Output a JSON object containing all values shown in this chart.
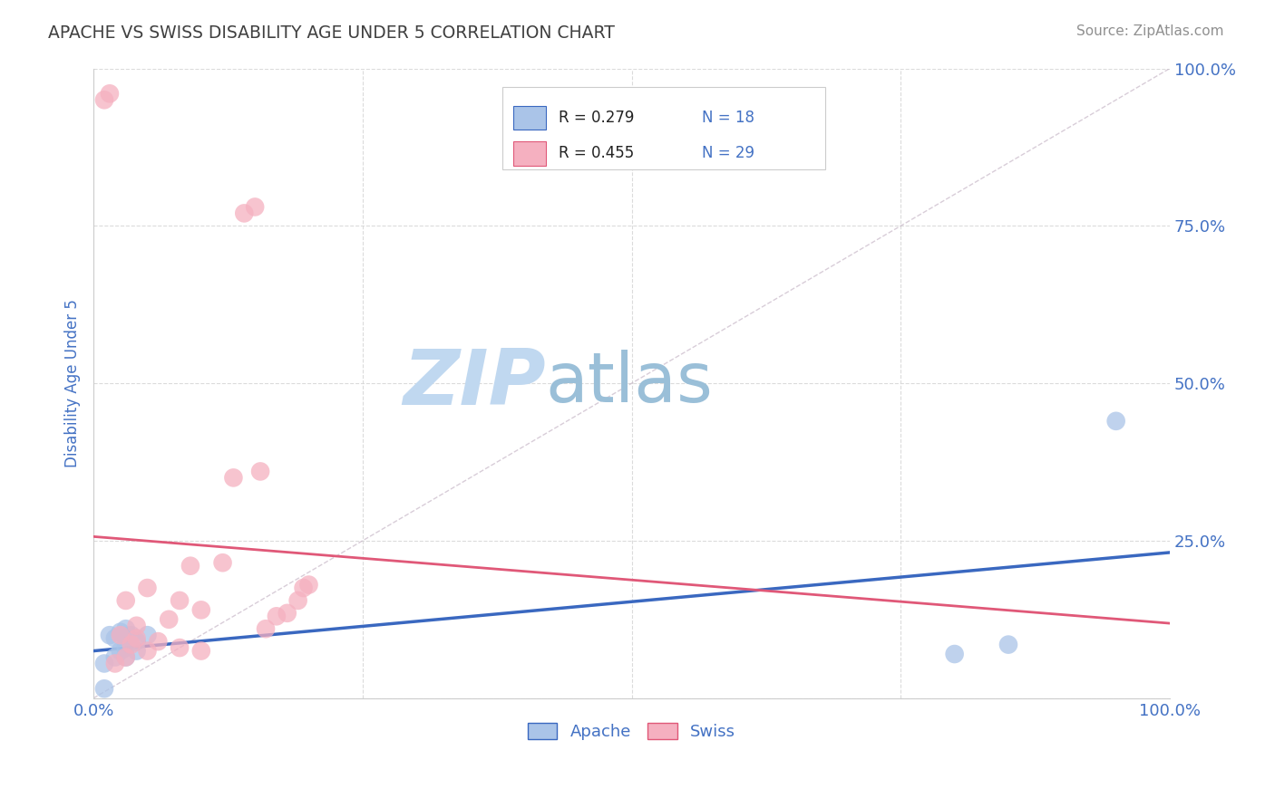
{
  "title": "APACHE VS SWISS DISABILITY AGE UNDER 5 CORRELATION CHART",
  "source": "Source: ZipAtlas.com",
  "ylabel": "Disability Age Under 5",
  "xlim": [
    0,
    1
  ],
  "ylim": [
    0,
    1
  ],
  "apache_color": "#aac4e8",
  "swiss_color": "#f5b0c0",
  "apache_line_color": "#3a68c0",
  "swiss_line_color": "#e05878",
  "diag_line_color": "#c8b8c8",
  "watermark_zip": "ZIP",
  "watermark_atlas": "atlas",
  "watermark_color_zip": "#c5d8f0",
  "watermark_color_atlas": "#a8c8d8",
  "legend_R_apache": "R = 0.279",
  "legend_N_apache": "N = 18",
  "legend_R_swiss": "R = 0.455",
  "legend_N_swiss": "N = 29",
  "apache_x": [
    0.01,
    0.01,
    0.015,
    0.02,
    0.02,
    0.025,
    0.025,
    0.03,
    0.03,
    0.03,
    0.03,
    0.035,
    0.04,
    0.04,
    0.05,
    0.8,
    0.85,
    0.95
  ],
  "apache_y": [
    0.015,
    0.055,
    0.1,
    0.065,
    0.095,
    0.075,
    0.105,
    0.065,
    0.08,
    0.095,
    0.11,
    0.1,
    0.075,
    0.09,
    0.1,
    0.07,
    0.085,
    0.44
  ],
  "swiss_x": [
    0.01,
    0.015,
    0.02,
    0.025,
    0.03,
    0.03,
    0.035,
    0.04,
    0.04,
    0.05,
    0.05,
    0.06,
    0.07,
    0.08,
    0.08,
    0.09,
    0.1,
    0.1,
    0.12,
    0.13,
    0.14,
    0.15,
    0.155,
    0.16,
    0.17,
    0.18,
    0.19,
    0.195,
    0.2
  ],
  "swiss_y": [
    0.95,
    0.96,
    0.055,
    0.1,
    0.065,
    0.155,
    0.085,
    0.095,
    0.115,
    0.075,
    0.175,
    0.09,
    0.125,
    0.08,
    0.155,
    0.21,
    0.075,
    0.14,
    0.215,
    0.35,
    0.77,
    0.78,
    0.36,
    0.11,
    0.13,
    0.135,
    0.155,
    0.175,
    0.18
  ],
  "background_color": "#ffffff",
  "grid_color": "#d8d8d8",
  "title_color": "#404040",
  "axis_label_color": "#4472c4",
  "tick_label_color": "#4472c4",
  "source_color": "#909090"
}
